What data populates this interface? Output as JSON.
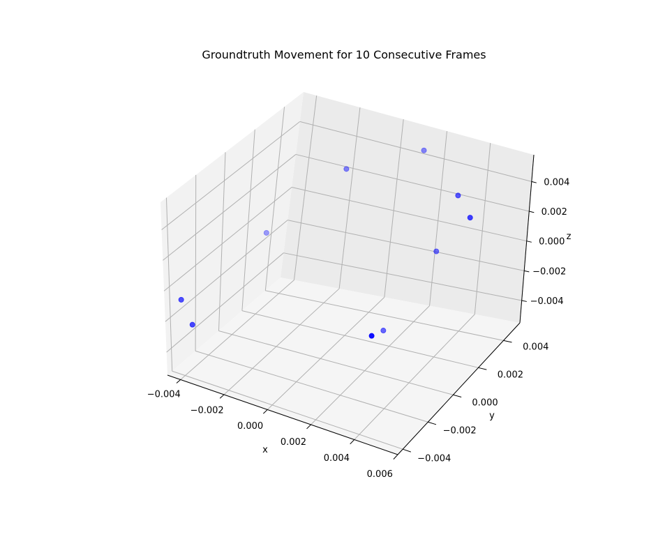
{
  "chart_data": {
    "type": "scatter",
    "projection": "3d",
    "title": "Groundtruth Movement for 10 Consecutive Frames",
    "xlabel": "x",
    "ylabel": "y",
    "zlabel": "z",
    "xlim": [
      -0.0046,
      0.006
    ],
    "ylim": [
      -0.0044,
      0.0053
    ],
    "zlim": [
      -0.0055,
      0.0058
    ],
    "xticks": [
      "−0.004",
      "−0.002",
      "0.000",
      "0.002",
      "0.004",
      "0.006"
    ],
    "yticks": [
      "−0.004",
      "−0.002",
      "0.000",
      "0.002",
      "0.004"
    ],
    "zticks": [
      "−0.004",
      "−0.002",
      "0.000",
      "0.002",
      "0.004"
    ],
    "grid": true,
    "marker_color": "#0000ff",
    "points": [
      {
        "x": 0.0045,
        "y": -0.004,
        "z": 0.0011
      },
      {
        "x": -0.001,
        "y": 0.003,
        "z": 0.004
      },
      {
        "x": 0.0014,
        "y": 0.0047,
        "z": 0.0048
      },
      {
        "x": -0.0042,
        "y": -0.0038,
        "z": -0.0008
      },
      {
        "x": 0.0058,
        "y": 0.001,
        "z": 0.0052
      },
      {
        "x": 0.0018,
        "y": 0.0018,
        "z": -0.0044
      },
      {
        "x": -0.0043,
        "y": 0.003,
        "z": -0.0012
      },
      {
        "x": -0.0036,
        "y": -0.004,
        "z": -0.002
      },
      {
        "x": 0.003,
        "y": 0.0035,
        "z": -0.0002
      },
      {
        "x": 0.0044,
        "y": 0.0024,
        "z": 0.0049
      }
    ]
  }
}
